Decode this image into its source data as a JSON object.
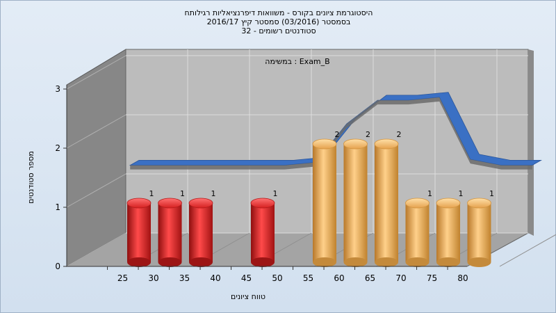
{
  "chart_data": {
    "type": "bar",
    "title_lines": [
      "היסטוגרמת ציונים בקורס - משוואות דיפרנציאליות רגילותח",
      "בסמסטר  (03/2016)  סמסטר קיץ 2016/17",
      "סטודנטים רשומים - 32"
    ],
    "annotation": "במשימה : Exam_B",
    "xlabel": "טווח ציונים",
    "ylabel": "מספר סטודנטים",
    "x_ticks": [
      25,
      30,
      35,
      40,
      45,
      50,
      55,
      60,
      65,
      70,
      75,
      80
    ],
    "y_ticks": [
      0,
      1,
      2,
      3
    ],
    "ylim": [
      0,
      3
    ],
    "bars": [
      {
        "x": 30,
        "value": 1,
        "label": "1",
        "group": "fail"
      },
      {
        "x": 35,
        "value": 1,
        "label": "1",
        "group": "fail"
      },
      {
        "x": 40,
        "value": 1,
        "label": "1",
        "group": "fail"
      },
      {
        "x": 50,
        "value": 1,
        "label": "1",
        "group": "fail"
      },
      {
        "x": 60,
        "value": 2,
        "label": "2",
        "group": "pass"
      },
      {
        "x": 65,
        "value": 2,
        "label": "2",
        "group": "pass"
      },
      {
        "x": 70,
        "value": 2,
        "label": "2",
        "group": "pass"
      },
      {
        "x": 75,
        "value": 1,
        "label": "1",
        "group": "pass"
      },
      {
        "x": 80,
        "value": 1,
        "label": "1",
        "group": "pass"
      },
      {
        "x": 85,
        "value": 1,
        "label": "1",
        "group": "pass"
      }
    ],
    "trend_values": [
      {
        "x": 25,
        "value": 1.4
      },
      {
        "x": 30,
        "value": 1.4
      },
      {
        "x": 35,
        "value": 1.4
      },
      {
        "x": 40,
        "value": 1.4
      },
      {
        "x": 45,
        "value": 1.4
      },
      {
        "x": 50,
        "value": 1.4
      },
      {
        "x": 55,
        "value": 1.45
      },
      {
        "x": 60,
        "value": 2.1
      },
      {
        "x": 65,
        "value": 2.5
      },
      {
        "x": 70,
        "value": 2.5
      },
      {
        "x": 75,
        "value": 2.55
      },
      {
        "x": 80,
        "value": 1.5
      },
      {
        "x": 85,
        "value": 1.4
      },
      {
        "x": 90,
        "value": 1.4
      }
    ],
    "colors": {
      "fail": "#e02525",
      "pass": "#f0ad4e",
      "trend": "#3a70c4",
      "trend_side": "#6b6b6b",
      "back_wall": "#bcbcbc",
      "side_wall": "#878787",
      "floor": "#a4a4a4"
    }
  }
}
